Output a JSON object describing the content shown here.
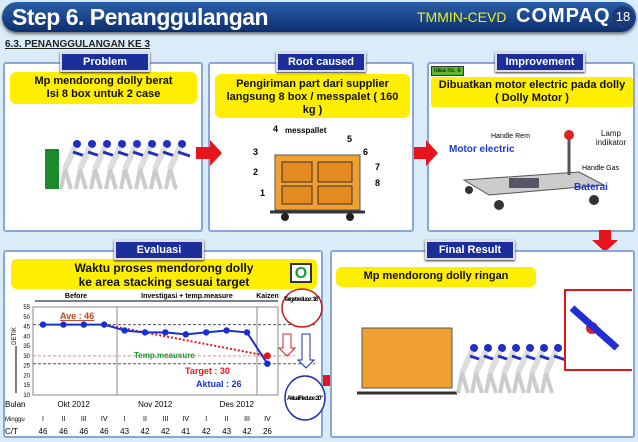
{
  "header": {
    "title": "Step 6. Penanggulangan",
    "org": "TMMIN-CEVD",
    "logo": "COMPAQ",
    "page": "18"
  },
  "section": "6.3. PENANGGULANGAN KE 3",
  "problem": {
    "tag": "Problem",
    "line1": "Mp mendorong dolly berat",
    "line2": "Isi 8 box untuk 2 case"
  },
  "root": {
    "tag": "Root caused",
    "line1": "Pengiriman part dari supplier",
    "line2": "langsung 8 box / messpalet ( 160",
    "line3": "kg )",
    "label": "messpallet",
    "numbers": [
      "1",
      "2",
      "3",
      "4",
      "5",
      "6",
      "7",
      "8"
    ]
  },
  "improvement": {
    "tag": "Improvement",
    "idea": "Idea no. 6",
    "line1": "Dibuatkan motor electric pada dolly",
    "line2": "( Dolly Motor )",
    "handle_rem": "Handle Rem",
    "lamp": "Lamp indikator",
    "motor": "Motor electric",
    "handle_gas": "Handle Gas",
    "baterai": "Baterai"
  },
  "evaluasi": {
    "tag": "Evaluasi",
    "line1": "Waktu proses mendorong dolly",
    "line2": "ke area stacking sesuai target",
    "judgement": "O"
  },
  "final": {
    "tag": "Final Result",
    "text": "Mp mendorong dolly ringan"
  },
  "colors": {
    "accent": "#1a2f9a",
    "highlight": "#ffee00",
    "arrow": "#e8141c"
  },
  "chart_data": {
    "type": "line",
    "ylabel": "DETIK",
    "ylim": [
      10,
      55
    ],
    "yticks": [
      10,
      15,
      20,
      25,
      30,
      35,
      40,
      45,
      50,
      55
    ],
    "phases": [
      "Before",
      "Investigasi + temp.measure",
      "Kaizen"
    ],
    "months": [
      "Okt 2012",
      "Nov 2012",
      "Des 2012"
    ],
    "weeks": [
      "I",
      "II",
      "III",
      "IV",
      "I",
      "II",
      "III",
      "IV",
      "I",
      "II",
      "III",
      "IV"
    ],
    "row_labels": {
      "bulan": "Bulan",
      "minggu": "Minggu",
      "ct": "C/T"
    },
    "values": [
      46,
      46,
      46,
      46,
      43,
      42,
      42,
      41,
      42,
      43,
      42,
      26
    ],
    "target_line": {
      "from": [
        4,
        46
      ],
      "to": [
        12,
        30
      ]
    },
    "annotations": {
      "ave": "Ave : 46",
      "temp": "Temp.meausure",
      "target": "Target : 30",
      "aktual": "Aktual : 26",
      "target_reduce": "Target reduce : 16\"",
      "aktual_reduce": "Aktual Reduce : 20\""
    },
    "ref_lines": [
      46,
      30,
      26
    ]
  }
}
